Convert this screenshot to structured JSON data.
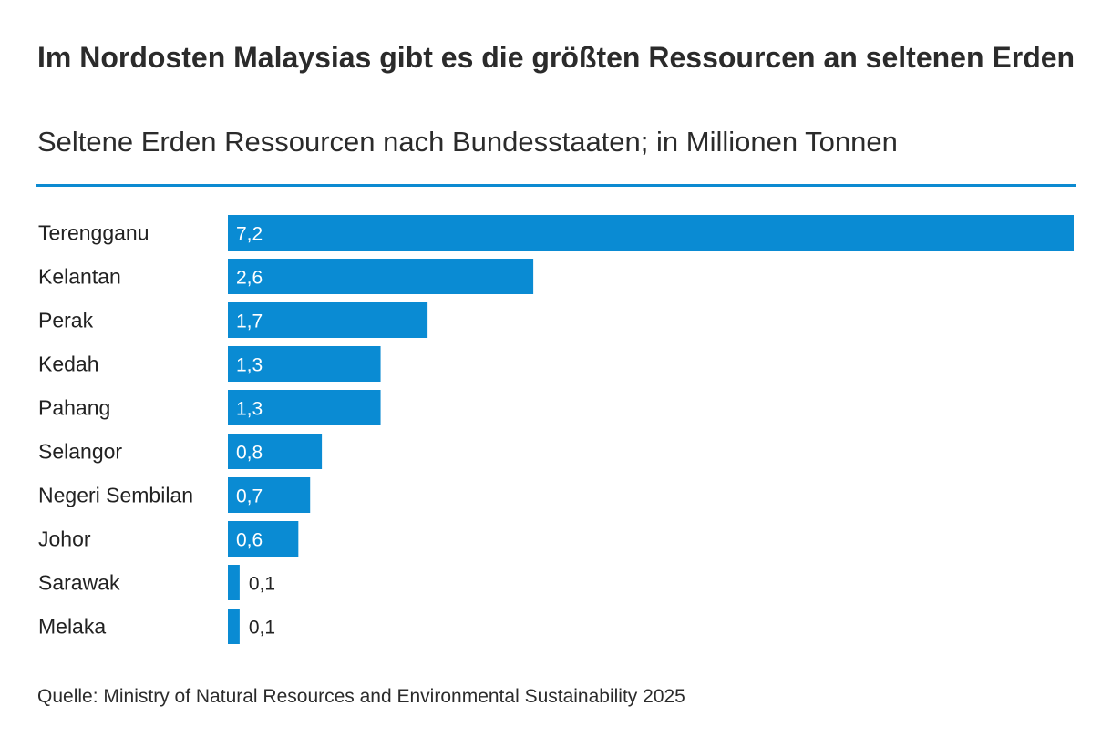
{
  "header": {
    "title": "Im Nordosten Malaysias gibt es die größten Ressourcen an seltenen Erden",
    "subtitle": "Seltene Erden Ressourcen nach Bundesstaaten; in Millionen Tonnen"
  },
  "footer": {
    "source": "Quelle: Ministry of Natural Resources and Environmental Sustainability 2025"
  },
  "colors": {
    "bar": "#0a8bd3",
    "rule": "#0c8ad1",
    "inside_label": "#ffffff",
    "outside_label": "#222222",
    "text": "#2b2b2b"
  },
  "chart_data": {
    "type": "bar",
    "orientation": "horizontal",
    "title": "Im Nordosten Malaysias gibt es die größten Ressourcen an seltenen Erden",
    "subtitle": "Seltene Erden Ressourcen nach Bundesstaaten; in Millionen Tonnen",
    "categories": [
      "Terengganu",
      "Kelantan",
      "Perak",
      "Kedah",
      "Pahang",
      "Selangor",
      "Negeri Sembilan",
      "Johor",
      "Sarawak",
      "Melaka"
    ],
    "values": [
      7.2,
      2.6,
      1.7,
      1.3,
      1.3,
      0.8,
      0.7,
      0.6,
      0.1,
      0.1
    ],
    "value_labels": [
      "7,2",
      "2,6",
      "1,7",
      "1,3",
      "1,3",
      "0,8",
      "0,7",
      "0,6",
      "0,1",
      "0,1"
    ],
    "xlim": [
      0,
      7.2
    ],
    "grid": false,
    "legend": "none",
    "data_labels": "on bars"
  }
}
